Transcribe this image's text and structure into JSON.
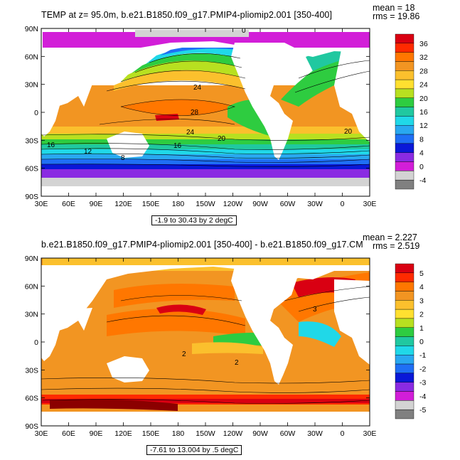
{
  "chart_data": [
    {
      "type": "heatmap",
      "title": "TEMP at z=  95.0m, b.e21.B1850.f09_g17.PMIP4-pliomip2.001  [350-400]",
      "stats": {
        "mean": "mean = 18",
        "rms": "rms = 19.86"
      },
      "contour_info": "-1.9 to 30.43 by 2 degC",
      "x_ticks": [
        "30E",
        "60E",
        "90E",
        "120E",
        "150E",
        "180",
        "150W",
        "120W",
        "90W",
        "60W",
        "30W",
        "0",
        "30E"
      ],
      "y_ticks": [
        "90N",
        "60N",
        "30N",
        "0",
        "30S",
        "60S",
        "90S"
      ],
      "colorbar_labels": [
        "36",
        "32",
        "28",
        "24",
        "20",
        "16",
        "12",
        "8",
        "4",
        "0",
        "-4"
      ],
      "colorbar_colors": [
        "#d90012",
        "#ff2a00",
        "#ff7700",
        "#f29522",
        "#fbc02d",
        "#ffe030",
        "#b8e020",
        "#2ecc40",
        "#20c8a0",
        "#20d8e8",
        "#29a8f0",
        "#1f6ff5",
        "#0a18d8",
        "#8a2be2",
        "#d21ed8",
        "#d3d3d3",
        "#808080"
      ],
      "contour_labels": [
        "0",
        "24",
        "28",
        "24",
        "20",
        "16",
        "12",
        "8",
        "16",
        "20"
      ]
    },
    {
      "type": "heatmap",
      "title": "b.e21.B1850.f09_g17.PMIP4-pliomip2.001  [350-400] - b.e21.B1850.f09_g17.CM",
      "stats": {
        "mean": "mean = 2.227",
        "rms": "rms = 2.519"
      },
      "contour_info": "-7.61 to 13.004 by .5 degC",
      "x_ticks": [
        "30E",
        "60E",
        "90E",
        "120E",
        "150E",
        "180",
        "150W",
        "120W",
        "90W",
        "60W",
        "30W",
        "0",
        "30E"
      ],
      "y_ticks": [
        "90N",
        "60N",
        "30N",
        "0",
        "30S",
        "60S",
        "90S"
      ],
      "colorbar_labels": [
        "5",
        "4",
        "3",
        "2",
        "1",
        "0",
        "-1",
        "-2",
        "-3",
        "-4",
        "-5"
      ],
      "colorbar_colors": [
        "#d90012",
        "#ff2a00",
        "#ff7700",
        "#f29522",
        "#fbc02d",
        "#ffe030",
        "#b8e020",
        "#2ecc40",
        "#20c8a0",
        "#20d8e8",
        "#29a8f0",
        "#1f6ff5",
        "#0a18d8",
        "#8a2be2",
        "#d21ed8",
        "#d3d3d3",
        "#808080"
      ],
      "contour_labels": [
        "2",
        "3",
        "2"
      ]
    }
  ]
}
